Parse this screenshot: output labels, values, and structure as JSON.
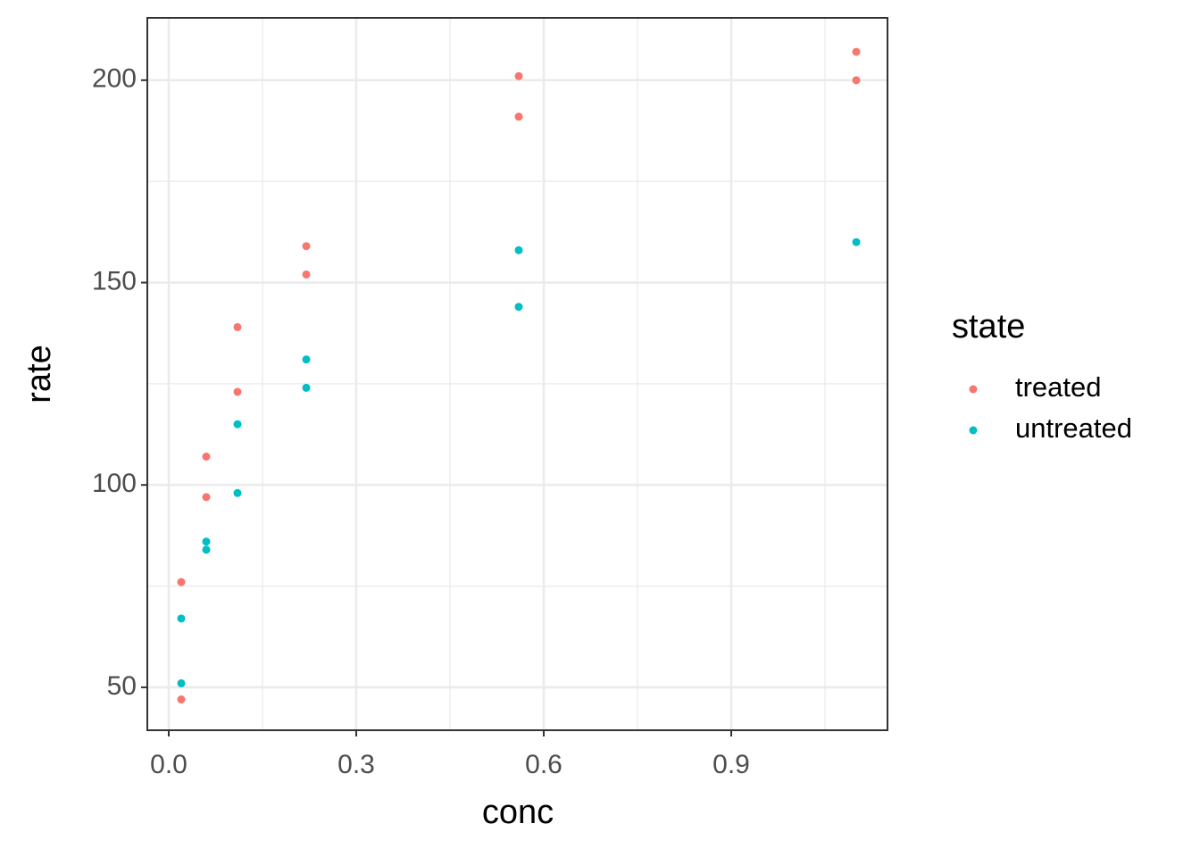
{
  "chart_data": {
    "type": "scatter",
    "x_label": "conc",
    "y_label": "rate",
    "legend_title": "state",
    "legend_position": "right",
    "grid": true,
    "xlim": [
      -0.0343,
      1.15
    ],
    "ylim": [
      39.4,
      215.4
    ],
    "xticks": [
      {
        "value": 0,
        "label": "0.0"
      },
      0.3,
      0.6,
      0.9
    ],
    "yticks": [
      50,
      100,
      150,
      200
    ],
    "x_minor_ticks": [
      0.15,
      0.45,
      0.75,
      1.05
    ],
    "y_minor_ticks": [
      75,
      125,
      175
    ],
    "series": [
      {
        "name": "treated",
        "color": "#f8766d",
        "x": [
          0.02,
          0.02,
          0.06,
          0.06,
          0.11,
          0.11,
          0.22,
          0.22,
          0.56,
          0.56,
          1.1,
          1.1
        ],
        "values": [
          76,
          47,
          97,
          107,
          123,
          139,
          159,
          152,
          191,
          201,
          207,
          200
        ]
      },
      {
        "name": "untreated",
        "color": "#00bfc4",
        "x": [
          0.02,
          0.02,
          0.06,
          0.06,
          0.11,
          0.11,
          0.22,
          0.22,
          0.56,
          0.56,
          1.1
        ],
        "values": [
          67,
          51,
          84,
          86,
          98,
          115,
          131,
          124,
          144,
          158,
          160
        ]
      }
    ]
  }
}
